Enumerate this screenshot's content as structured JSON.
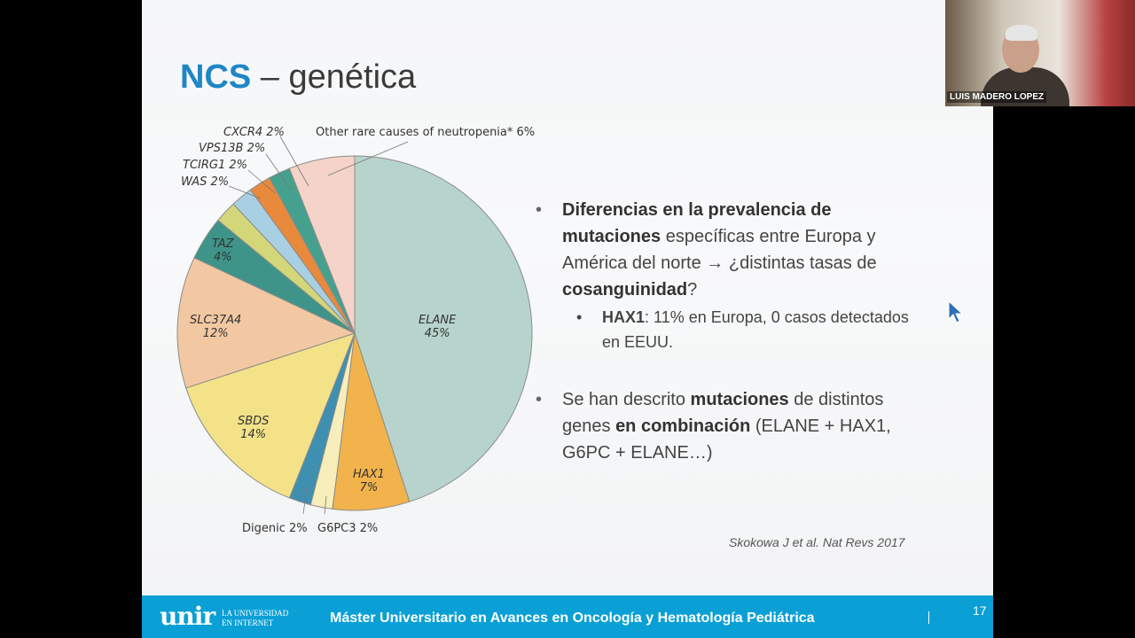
{
  "slide": {
    "title_ncs": "NCS",
    "title_rest": " – genética",
    "bullets": {
      "b1": {
        "p1": "Diferencias en la prevalencia de mutaciones",
        "p2": " específicas entre Europa y América del norte ",
        "arrow": "→",
        "p3": " ¿distintas tasas de ",
        "p4": "cosanguinidad",
        "p5": "?"
      },
      "b1_sub": {
        "p1": "HAX1",
        "p2": ": 11% en Europa, 0 casos detectados en EEUU."
      },
      "b2": {
        "p1": "Se han descrito ",
        "p2": "mutaciones",
        "p3": " de distintos genes ",
        "p4": "en combinación",
        "p5": " (ELANE + HAX1, G6PC + ELANE…)"
      }
    },
    "citation": "Skokowa J et al. Nat Revs 2017"
  },
  "chart_data": {
    "type": "pie",
    "title": "",
    "slices": [
      {
        "label": "ELANE",
        "value": 45,
        "color": "#b7d4cc"
      },
      {
        "label": "HAX1",
        "value": 7,
        "color": "#f2b24c"
      },
      {
        "label": "G6PC3",
        "value": 2,
        "color": "#f7eebb"
      },
      {
        "label": "Digenic",
        "value": 2,
        "color": "#3f8fb0"
      },
      {
        "label": "SBDS",
        "value": 14,
        "color": "#f3e288"
      },
      {
        "label": "SLC37A4",
        "value": 12,
        "color": "#f2c8a2"
      },
      {
        "label": "TAZ",
        "value": 4,
        "color": "#3e9488"
      },
      {
        "label": "WAS",
        "value": 2,
        "color": "#d4d67a"
      },
      {
        "label": "TCIRG1",
        "value": 2,
        "color": "#a9d0e2"
      },
      {
        "label": "VPS13B",
        "value": 2,
        "color": "#e9893b"
      },
      {
        "label": "CXCR4",
        "value": 2,
        "color": "#46a08e"
      },
      {
        "label": "Other rare causes of neutropenia*",
        "value": 6,
        "color": "#f5d3c8"
      }
    ],
    "labels": {
      "elane": "ELANE",
      "elane_pct": "45%",
      "hax1": "HAX1",
      "hax1_pct": "7%",
      "sbds": "SBDS",
      "sbds_pct": "14%",
      "slc": "SLC37A4",
      "slc_pct": "12%",
      "taz": "TAZ",
      "taz_pct": "4%",
      "was": "WAS 2%",
      "tcirg": "TCIRG1 2%",
      "vps": "VPS13B 2%",
      "cxcr": "CXCR4 2%",
      "other": "Other rare causes of neutropenia* 6%",
      "digenic": "Digenic 2%",
      "g6pc": "G6PC3 2%"
    }
  },
  "footer": {
    "logo": "unir",
    "logo_sub1": "LA UNIVERSIDAD",
    "logo_sub2": "EN INTERNET",
    "title": "Máster Universitario en Avances en Oncología y Hematología Pediátrica",
    "page": "17"
  },
  "webcam": {
    "name": "LUIS MADERO LOPEZ"
  }
}
